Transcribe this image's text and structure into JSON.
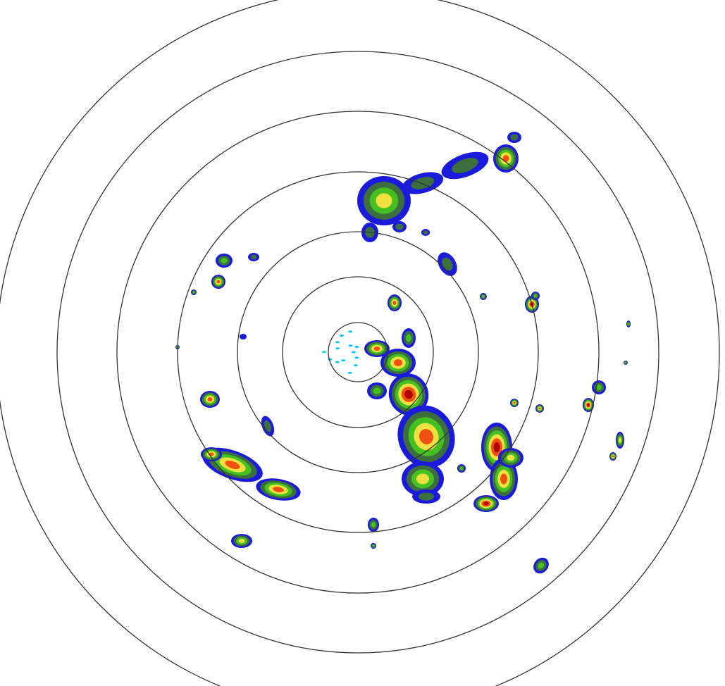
{
  "radar": {
    "ring_count": 7,
    "ring_color": "#333333",
    "background": "#ffffff",
    "palette": {
      "clutter": "#00c8ff",
      "very_light": "#1a1adc",
      "light": "#3d6e3d",
      "moderate": "#44c020",
      "heavy": "#f0e040",
      "intense": "#f05010",
      "extreme": "#b00000"
    }
  }
}
